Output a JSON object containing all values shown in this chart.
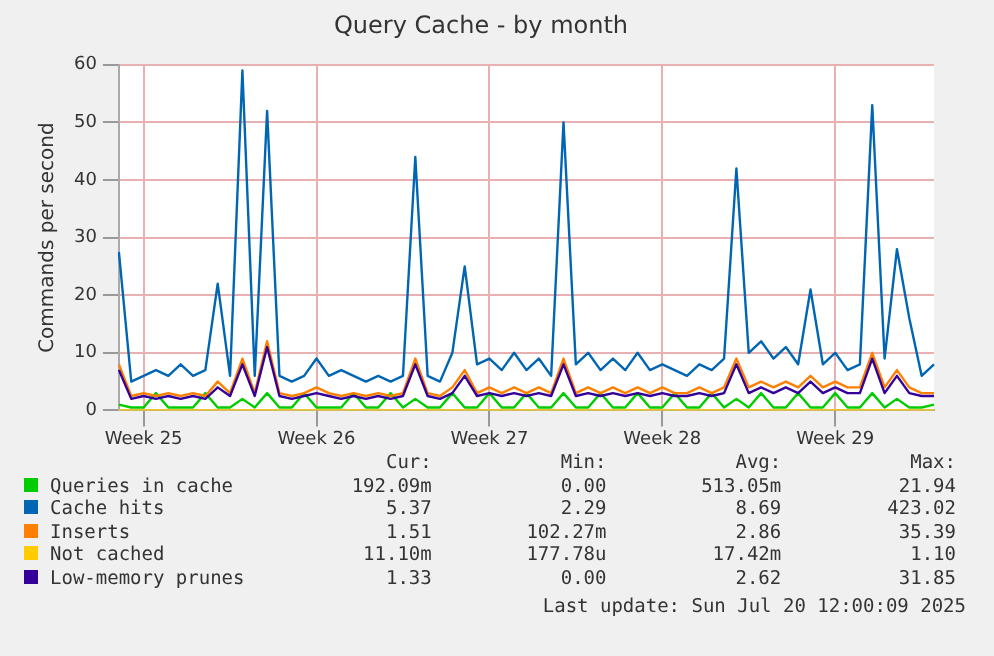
{
  "chart_data": {
    "type": "line",
    "title": "Query Cache - by month",
    "ylabel": "Commands per second",
    "categories": [
      null,
      null,
      "Week 25",
      null,
      null,
      null,
      null,
      null,
      null,
      null,
      null,
      null,
      null,
      null,
      null,
      null,
      "Week 26",
      null,
      null,
      null,
      null,
      null,
      null,
      null,
      null,
      null,
      null,
      null,
      null,
      null,
      "Week 27",
      null,
      null,
      null,
      null,
      null,
      null,
      null,
      null,
      null,
      null,
      null,
      null,
      null,
      "Week 28",
      null,
      null,
      null,
      null,
      null,
      null,
      null,
      null,
      null,
      null,
      null,
      null,
      null,
      "Week 29",
      null,
      null,
      null,
      null,
      null,
      null,
      null,
      null
    ],
    "ylim": [
      0,
      60
    ],
    "yticks": [
      0,
      10,
      20,
      30,
      40,
      50,
      60
    ],
    "grid": true,
    "legend": "bottom",
    "marker": "none",
    "line_style": "solid",
    "series": [
      {
        "name": "Queries in cache",
        "color": "#00cc00",
        "values": [
          1,
          0.5,
          0.5,
          3,
          0.5,
          0.5,
          0.5,
          3,
          0.5,
          0.5,
          2,
          0.5,
          3,
          0.5,
          0.5,
          3,
          0.5,
          0.5,
          0.5,
          3,
          0.5,
          0.5,
          3,
          0.5,
          2,
          0.5,
          0.5,
          3,
          0.5,
          0.5,
          3,
          0.5,
          0.5,
          3,
          0.5,
          0.5,
          3,
          0.5,
          0.5,
          3,
          0.5,
          0.5,
          3,
          0.5,
          0.5,
          3,
          0.5,
          0.5,
          3,
          0.5,
          2,
          0.5,
          3,
          0.5,
          0.5,
          3,
          0.5,
          0.5,
          3,
          0.5,
          0.5,
          3,
          0.5,
          2,
          0.5,
          0.5,
          1
        ]
      },
      {
        "name": "Cache hits",
        "color": "#0066b3",
        "values": [
          27.5,
          5,
          6,
          7,
          6,
          8,
          6,
          7,
          22,
          6,
          59,
          6,
          52,
          6,
          5,
          6,
          9,
          6,
          7,
          6,
          5,
          6,
          5,
          6,
          44,
          6,
          5,
          10,
          25,
          8,
          9,
          7,
          10,
          7,
          9,
          6,
          50,
          8,
          10,
          7,
          9,
          7,
          10,
          7,
          8,
          7,
          6,
          8,
          7,
          9,
          42,
          10,
          12,
          9,
          11,
          8,
          21,
          8,
          10,
          7,
          8,
          53,
          9,
          28,
          16,
          6,
          8
        ]
      },
      {
        "name": "Inserts",
        "color": "#ff8000",
        "values": [
          8,
          2.5,
          3,
          2.5,
          3,
          2.5,
          3,
          2.5,
          5,
          3,
          9,
          3,
          12,
          3,
          2.5,
          3,
          4,
          3,
          2.5,
          3,
          2.5,
          3,
          2.5,
          3,
          9,
          3,
          2.5,
          4,
          7,
          3,
          4,
          3,
          4,
          3,
          4,
          3,
          9,
          3,
          4,
          3,
          4,
          3,
          4,
          3,
          4,
          3,
          3,
          4,
          3,
          4,
          9,
          4,
          5,
          4,
          5,
          4,
          6,
          4,
          5,
          4,
          4,
          10,
          4,
          7,
          4,
          3,
          3
        ]
      },
      {
        "name": "Not cached",
        "color": "#ffcc00",
        "values": [
          0,
          0,
          0,
          0,
          0,
          0,
          0,
          0,
          0,
          0,
          0,
          0,
          0,
          0,
          0,
          0,
          0,
          0,
          0,
          0,
          0,
          0,
          0,
          0,
          0,
          0,
          0,
          0,
          0,
          0,
          0,
          0,
          0,
          0,
          0,
          0,
          0,
          0,
          0,
          0,
          0,
          0,
          0,
          0,
          0,
          0,
          0,
          0,
          0,
          0,
          0,
          0,
          0,
          0,
          0,
          0,
          0,
          0,
          0,
          0,
          0,
          0,
          0,
          0,
          0,
          0,
          0
        ]
      },
      {
        "name": "Low-memory prunes",
        "color": "#330099",
        "values": [
          7,
          2,
          2.5,
          2,
          2.5,
          2,
          2.5,
          2,
          4,
          2.5,
          8,
          2.5,
          11,
          2.5,
          2,
          2.5,
          3,
          2.5,
          2,
          2.5,
          2,
          2.5,
          2,
          2.5,
          8,
          2.5,
          2,
          3,
          6,
          2.5,
          3,
          2.5,
          3,
          2.5,
          3,
          2.5,
          8,
          2.5,
          3,
          2.5,
          3,
          2.5,
          3,
          2.5,
          3,
          2.5,
          2.5,
          3,
          2.5,
          3,
          8,
          3,
          4,
          3,
          4,
          3,
          5,
          3,
          4,
          3,
          3,
          9,
          3,
          6,
          3,
          2.5,
          2.5
        ]
      }
    ],
    "annotations": [
      "Cur:",
      "Min:",
      "Avg:",
      "Max:",
      "192.09m",
      "0.00",
      "513.05m",
      "21.94",
      "5.37",
      "2.29",
      "8.69",
      "423.02",
      "1.51",
      "102.27m",
      "2.86",
      "35.39",
      "11.10m",
      "177.78u",
      "17.42m",
      "1.10",
      "1.33",
      "0.00",
      "2.62",
      "31.85",
      "Last update: Sun Jul 20 12:00:09 2025"
    ]
  }
}
